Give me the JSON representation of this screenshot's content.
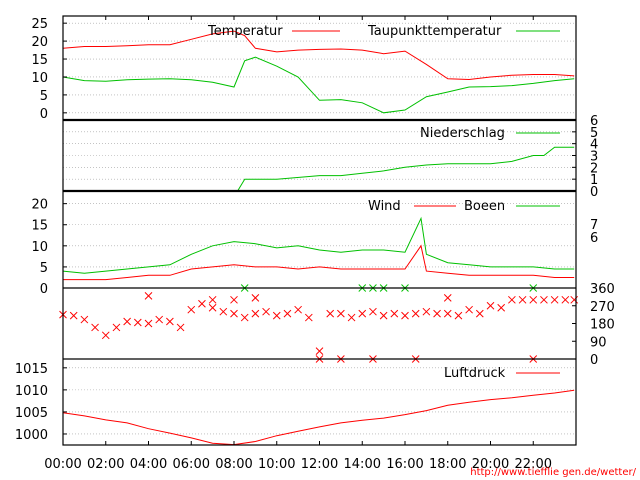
{
  "chart_data": [
    {
      "type": "line",
      "panel": "temperature",
      "ylim": [
        -2,
        27
      ],
      "yticks": [
        "25",
        "20",
        "15",
        "10",
        "5",
        "0"
      ],
      "grid": true,
      "legend_position": "top-right",
      "x": [
        "00:00",
        "01:00",
        "02:00",
        "03:00",
        "04:00",
        "05:00",
        "06:00",
        "07:00",
        "08:00",
        "08:30",
        "09:00",
        "10:00",
        "11:00",
        "12:00",
        "13:00",
        "14:00",
        "15:00",
        "16:00",
        "17:00",
        "18:00",
        "19:00",
        "20:00",
        "21:00",
        "22:00",
        "23:00",
        "23:55"
      ],
      "series": [
        {
          "name": "Temperatur",
          "color": "#ff0000",
          "values": [
            18,
            18.5,
            18.5,
            18.7,
            19,
            19,
            20.5,
            22,
            22.8,
            21.5,
            18,
            17,
            17.5,
            17.7,
            17.8,
            17.5,
            16.5,
            17.2,
            13.5,
            9.5,
            9.3,
            10,
            10.5,
            10.7,
            10.7,
            10.3
          ]
        },
        {
          "name": "Taupunkttemperatur",
          "color": "#00c000",
          "values": [
            10,
            9,
            8.8,
            9.2,
            9.4,
            9.5,
            9.2,
            8.5,
            7.2,
            14.5,
            15.5,
            13,
            10,
            3.5,
            3.7,
            2.8,
            0,
            0.8,
            4.5,
            5.8,
            7.2,
            7.3,
            7.6,
            8.2,
            9,
            9.5
          ]
        }
      ]
    },
    {
      "type": "line",
      "panel": "precipitation",
      "ylim": [
        0,
        6
      ],
      "yticks": [
        "6",
        "5",
        "4",
        "3",
        "2",
        "1",
        "0"
      ],
      "grid": true,
      "legend_position": "top-right",
      "x": [
        "00:00",
        "07:00",
        "08:10",
        "08:30",
        "10:00",
        "12:00",
        "13:00",
        "14:00",
        "15:00",
        "16:00",
        "17:00",
        "18:00",
        "19:00",
        "20:00",
        "21:00",
        "22:00",
        "22:30",
        "23:00",
        "23:55"
      ],
      "series": [
        {
          "name": "Niederschlag",
          "color": "#00c000",
          "values": [
            0,
            0,
            0,
            1,
            1,
            1.3,
            1.3,
            1.5,
            1.7,
            2,
            2.2,
            2.3,
            2.3,
            2.3,
            2.5,
            3,
            3,
            3.7,
            3.7
          ]
        }
      ]
    },
    {
      "type": "line",
      "panel": "wind",
      "ylim": [
        0,
        23
      ],
      "yticks": [
        "20",
        "15",
        "10",
        "5",
        "0"
      ],
      "right_scale_labels": [
        "7",
        "6"
      ],
      "grid": true,
      "legend_position": "top-right",
      "x": [
        "00:00",
        "01:00",
        "02:00",
        "03:00",
        "04:00",
        "05:00",
        "06:00",
        "07:00",
        "08:00",
        "09:00",
        "10:00",
        "11:00",
        "12:00",
        "13:00",
        "14:00",
        "15:00",
        "16:00",
        "16:45",
        "17:00",
        "18:00",
        "19:00",
        "20:00",
        "21:00",
        "22:00",
        "23:00",
        "23:55"
      ],
      "series": [
        {
          "name": "Wind",
          "color": "#ff0000",
          "values": [
            2,
            2,
            2,
            2.5,
            3,
            3,
            4.5,
            5,
            5.5,
            5,
            5,
            4.5,
            5,
            4.5,
            4.5,
            4.5,
            4.5,
            10,
            4,
            3.5,
            3,
            3,
            3,
            3,
            2.5,
            2.5
          ]
        },
        {
          "name": "Boeen",
          "color": "#00c000",
          "values": [
            4,
            3.5,
            4,
            4.5,
            5,
            5.5,
            8,
            10,
            11,
            10.5,
            9.5,
            10,
            9,
            8.5,
            9,
            9,
            8.5,
            16.5,
            8,
            6,
            5.5,
            5,
            5,
            5,
            4.5,
            4.5
          ]
        }
      ]
    },
    {
      "type": "scatter",
      "panel": "wind_direction",
      "ylim": [
        0,
        360
      ],
      "yticks": [
        "360",
        "270",
        "180",
        "90",
        "0"
      ],
      "marker": "x",
      "colors": {
        "direction": "#ff0000",
        "calm": "#00c000"
      },
      "x": [
        "00:00",
        "00:30",
        "01:00",
        "01:30",
        "02:00",
        "02:30",
        "03:00",
        "03:30",
        "04:00",
        "04:30",
        "05:00",
        "05:30",
        "06:00",
        "06:30",
        "07:00",
        "07:30",
        "08:00",
        "08:30",
        "09:00",
        "09:30",
        "10:00",
        "10:30",
        "11:00",
        "11:30",
        "12:00",
        "12:30",
        "13:00",
        "13:30",
        "14:00",
        "14:30",
        "15:00",
        "15:30",
        "16:00",
        "16:30",
        "17:00",
        "17:30",
        "18:00",
        "18:30",
        "19:00",
        "19:30",
        "20:00",
        "20:30",
        "21:00",
        "21:30",
        "22:00",
        "22:30",
        "23:00",
        "23:30",
        "23:55"
      ],
      "values": [
        225,
        220,
        200,
        160,
        120,
        160,
        190,
        185,
        180,
        200,
        190,
        160,
        250,
        280,
        260,
        240,
        230,
        210,
        230,
        240,
        220,
        230,
        250,
        210,
        40,
        230,
        230,
        210,
        230,
        240,
        220,
        230,
        220,
        230,
        240,
        230,
        230,
        220,
        250,
        230,
        270,
        260,
        300,
        300,
        300,
        300,
        300,
        300,
        300
      ],
      "extra_points": [
        {
          "x": "04:00",
          "y": 320
        },
        {
          "x": "07:00",
          "y": 300
        },
        {
          "x": "08:00",
          "y": 300
        },
        {
          "x": "09:00",
          "y": 310
        },
        {
          "x": "12:00",
          "y": 0
        },
        {
          "x": "13:00",
          "y": 0
        },
        {
          "x": "14:30",
          "y": 0
        },
        {
          "x": "16:30",
          "y": 0
        },
        {
          "x": "18:00",
          "y": 310
        },
        {
          "x": "22:00",
          "y": 0
        }
      ],
      "calm_points": [
        {
          "x": "08:30",
          "y": 360
        },
        {
          "x": "14:00",
          "y": 360
        },
        {
          "x": "14:30",
          "y": 360
        },
        {
          "x": "15:00",
          "y": 360
        },
        {
          "x": "16:00",
          "y": 360
        },
        {
          "x": "22:00",
          "y": 360
        }
      ]
    },
    {
      "type": "line",
      "panel": "pressure",
      "ylim": [
        997.5,
        1017
      ],
      "yticks": [
        "1015",
        "1010",
        "1005",
        "1000"
      ],
      "grid": true,
      "legend_position": "top-right",
      "x": [
        "00:00",
        "01:00",
        "02:00",
        "03:00",
        "04:00",
        "05:00",
        "06:00",
        "07:00",
        "08:00",
        "09:00",
        "10:00",
        "11:00",
        "12:00",
        "13:00",
        "14:00",
        "15:00",
        "16:00",
        "17:00",
        "18:00",
        "19:00",
        "20:00",
        "21:00",
        "22:00",
        "23:00",
        "23:55"
      ],
      "series": [
        {
          "name": "Luftdruck",
          "color": "#ff0000",
          "values": [
            1004.8,
            1004.1,
            1003.2,
            1002.5,
            1001.2,
            1000.2,
            999.1,
            997.9,
            997.6,
            998.3,
            999.6,
            1000.6,
            1001.6,
            1002.5,
            1003.1,
            1003.6,
            1004.4,
            1005.3,
            1006.5,
            1007.2,
            1007.8,
            1008.2,
            1008.8,
            1009.3,
            1009.9
          ]
        }
      ]
    }
  ],
  "x_axis": {
    "tick_labels": [
      "00:00",
      "02:00",
      "04:00",
      "06:00",
      "08:00",
      "10:00",
      "12:00",
      "14:00",
      "16:00",
      "18:00",
      "20:00",
      "22:00"
    ]
  },
  "credit": "http://www.tiefflie gen.de/wetter/"
}
